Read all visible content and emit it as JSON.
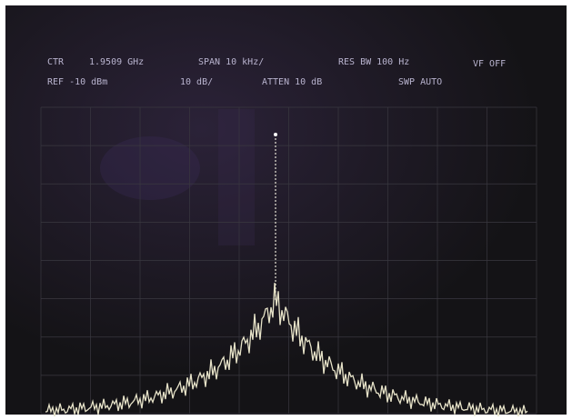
{
  "screen": {
    "row1": [
      "CTR",
      "1.9509 GHz",
      "SPAN 10 kHz/",
      "RES BW 100 Hz",
      "VF OFF"
    ],
    "row2": [
      "REF -10 dBm",
      "10 dB/",
      "ATTEN 10 dB",
      "SWP AUTO"
    ]
  }
}
